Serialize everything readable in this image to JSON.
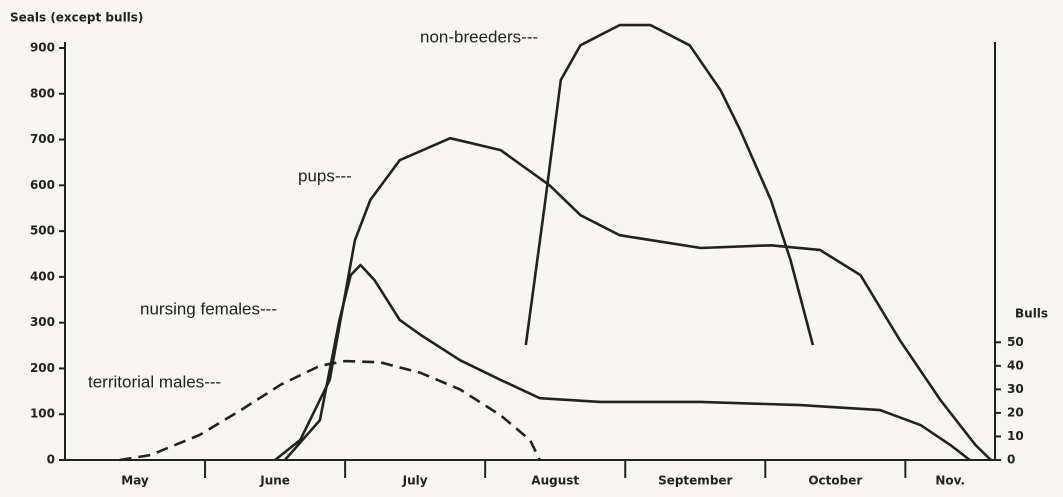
{
  "chart_data": {
    "type": "line",
    "y_axis_label": "Seals (except bulls)",
    "y2_axis_label": "Bulls",
    "categories": [
      "May",
      "June",
      "July",
      "August",
      "September",
      "October",
      "Nov."
    ],
    "xlim": [
      0,
      6.64
    ],
    "ylim": [
      0,
      900
    ],
    "yticks": [
      0,
      100,
      200,
      300,
      400,
      500,
      600,
      700,
      800,
      900
    ],
    "y2lim": [
      0,
      175
    ],
    "y2ticks": [
      0,
      10,
      20,
      30,
      40,
      50
    ],
    "series": [
      {
        "name": "pups---",
        "color": "#222222",
        "dash": false,
        "x": [
          1.5,
          1.68,
          1.89,
          2.07,
          2.18,
          2.39,
          2.75,
          3.11,
          3.46,
          3.68,
          3.96,
          4.54,
          5.04,
          5.39,
          5.68,
          5.96,
          6.25,
          6.5,
          6.61
        ],
        "values": [
          0,
          44,
          175,
          480,
          568,
          655,
          703,
          677,
          600,
          535,
          491,
          463,
          469,
          459,
          404,
          262,
          131,
          33,
          0
        ]
      },
      {
        "name": "nursing females---",
        "color": "#222222",
        "dash": false,
        "x": [
          1.57,
          1.82,
          1.96,
          2.04,
          2.11,
          2.21,
          2.39,
          2.54,
          2.82,
          3.11,
          3.39,
          3.82,
          4.54,
          5.25,
          5.82,
          6.11,
          6.32,
          6.46
        ],
        "values": [
          0,
          87,
          306,
          404,
          426,
          393,
          306,
          273,
          218,
          175,
          135,
          127,
          127,
          120,
          109,
          76,
          33,
          0
        ]
      },
      {
        "name": "non-breeders---",
        "color": "#222222",
        "dash": false,
        "x": [
          3.29,
          3.43,
          3.54,
          3.68,
          3.96,
          4.18,
          4.46,
          4.68,
          4.82,
          5.04,
          5.18,
          5.34
        ],
        "values": [
          251,
          568,
          830,
          906,
          950,
          950,
          906,
          808,
          721,
          568,
          437,
          251
        ]
      },
      {
        "name": "territorial males---",
        "color": "#222222",
        "dash": true,
        "axis": "y2",
        "x": [
          0.39,
          0.61,
          0.96,
          1.25,
          1.54,
          1.82,
          2.0,
          2.25,
          2.54,
          2.82,
          3.11,
          3.32,
          3.39
        ],
        "values": [
          0,
          2.1,
          10.6,
          21,
          32,
          40,
          42,
          41.5,
          37,
          30,
          19,
          8.5,
          0
        ]
      }
    ]
  }
}
